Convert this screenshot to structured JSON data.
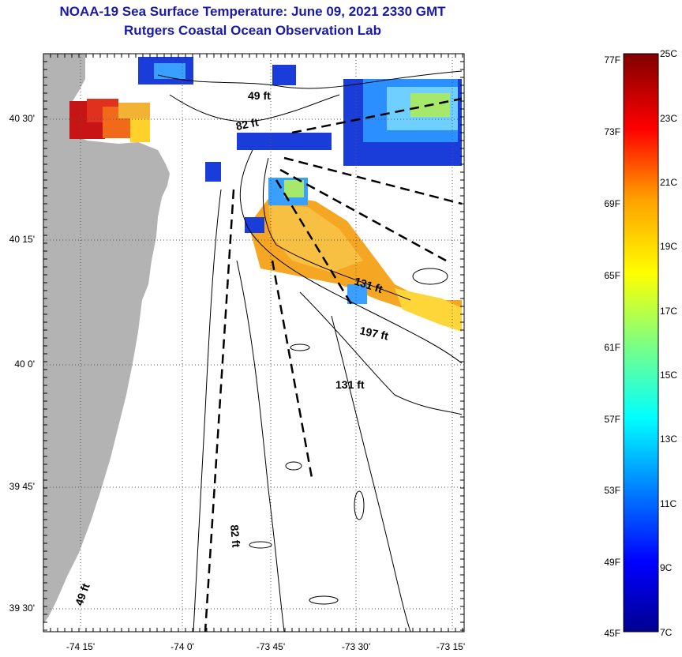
{
  "title_line1": "NOAA-19 Sea Surface Temperature:  June 09, 2021 2330 GMT",
  "title_line2": "Rutgers Coastal Ocean Observation Lab",
  "lat_labels": [
    "40 30'",
    "40 15'",
    "40 0'",
    "39 45'",
    "39 30'"
  ],
  "lon_labels": [
    "-74 15'",
    "-74 0'",
    "-73 45'",
    "-73 30'",
    "-73 15'"
  ],
  "depth_labels": {
    "d49_top": "49 ft",
    "d82_top": "82 ft",
    "d131_east": "131 ft",
    "d197": "197 ft",
    "d131_south": "131 ft",
    "d82_south": "82 ft",
    "d49_south": "49 ft"
  },
  "colorbar": {
    "fahrenheit": [
      "77F",
      "73F",
      "69F",
      "65F",
      "61F",
      "57F",
      "53F",
      "49F",
      "45F"
    ],
    "celsius": [
      "25C",
      "23C",
      "21C",
      "19C",
      "17C",
      "15C",
      "13C",
      "11C",
      "9C",
      "7C"
    ]
  },
  "colors": {
    "title": "#1a1aa8",
    "land": "#b3b3b3",
    "warm": "#c81414",
    "orange": "#f5a623",
    "blue": "#1a3cd8"
  }
}
